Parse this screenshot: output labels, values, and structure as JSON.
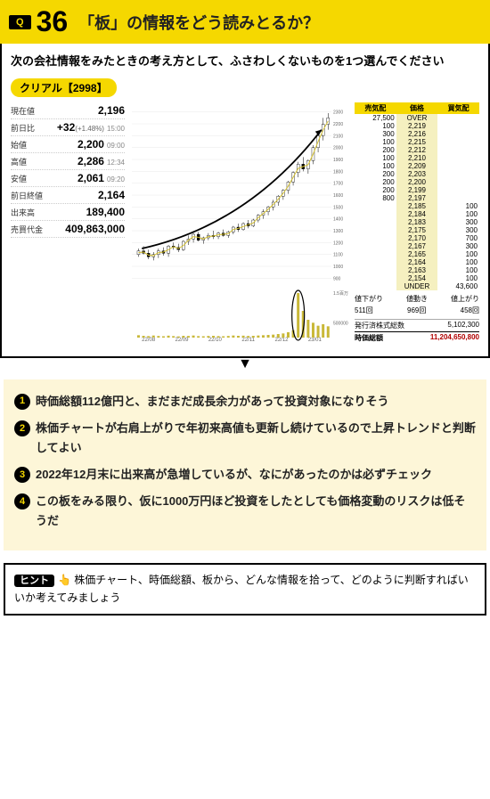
{
  "header": {
    "q_label": "Q",
    "q_number": "36",
    "title": "「板」の情報をどう読みとるか？"
  },
  "prompt": "次の会社情報をみたときの考え方として、ふさわしくないものを1つ選んでください",
  "ticker": "クリアル【2998】",
  "stats": [
    {
      "label": "現在値",
      "value": "2,196",
      "time": ""
    },
    {
      "label": "前日比",
      "value": "+32",
      "sub": "(+1.48%)",
      "time": "15:00"
    },
    {
      "label": "始値",
      "value": "2,200",
      "time": "09:00"
    },
    {
      "label": "高値",
      "value": "2,286",
      "time": "12:34"
    },
    {
      "label": "安値",
      "value": "2,061",
      "time": "09:20"
    },
    {
      "label": "前日終値",
      "value": "2,164",
      "time": ""
    },
    {
      "label": "出来高",
      "value": "189,400",
      "time": ""
    },
    {
      "label": "売買代金",
      "value": "409,863,000",
      "time": ""
    }
  ],
  "chart": {
    "type": "candlestick",
    "x_labels": [
      "22/08",
      "22/09",
      "22/10",
      "22/11",
      "22/12",
      "23/01"
    ],
    "y_ticks": [
      900,
      1000,
      1100,
      1200,
      1300,
      1400,
      1500,
      1600,
      1700,
      1800,
      1900,
      2000,
      2100,
      2200,
      2300
    ],
    "ylim": [
      850,
      2350
    ],
    "xlim": [
      0,
      6
    ],
    "trend_line": [
      [
        0.3,
        1150
      ],
      [
        3.5,
        1350
      ],
      [
        5.7,
        2150
      ]
    ],
    "arrow": true,
    "candles": [
      [
        0.2,
        1100,
        1150,
        1080,
        1130
      ],
      [
        0.35,
        1130,
        1170,
        1100,
        1110
      ],
      [
        0.5,
        1110,
        1140,
        1060,
        1080
      ],
      [
        0.65,
        1080,
        1120,
        1050,
        1100
      ],
      [
        0.8,
        1100,
        1150,
        1070,
        1130
      ],
      [
        0.95,
        1130,
        1160,
        1090,
        1110
      ],
      [
        1.1,
        1110,
        1180,
        1080,
        1170
      ],
      [
        1.25,
        1170,
        1200,
        1140,
        1160
      ],
      [
        1.4,
        1160,
        1190,
        1120,
        1140
      ],
      [
        1.55,
        1140,
        1220,
        1130,
        1210
      ],
      [
        1.7,
        1210,
        1260,
        1180,
        1230
      ],
      [
        1.85,
        1230,
        1280,
        1200,
        1270
      ],
      [
        2.0,
        1270,
        1290,
        1210,
        1220
      ],
      [
        2.15,
        1220,
        1250,
        1190,
        1240
      ],
      [
        2.3,
        1240,
        1280,
        1220,
        1260
      ],
      [
        2.45,
        1260,
        1300,
        1230,
        1250
      ],
      [
        2.6,
        1250,
        1290,
        1230,
        1280
      ],
      [
        2.75,
        1280,
        1310,
        1250,
        1260
      ],
      [
        2.9,
        1260,
        1300,
        1240,
        1290
      ],
      [
        3.05,
        1290,
        1340,
        1270,
        1330
      ],
      [
        3.2,
        1330,
        1360,
        1290,
        1310
      ],
      [
        3.35,
        1310,
        1370,
        1300,
        1360
      ],
      [
        3.5,
        1360,
        1390,
        1320,
        1340
      ],
      [
        3.65,
        1340,
        1400,
        1330,
        1390
      ],
      [
        3.8,
        1390,
        1440,
        1370,
        1430
      ],
      [
        3.95,
        1430,
        1480,
        1400,
        1460
      ],
      [
        4.1,
        1460,
        1510,
        1430,
        1500
      ],
      [
        4.25,
        1500,
        1560,
        1470,
        1540
      ],
      [
        4.4,
        1540,
        1600,
        1510,
        1590
      ],
      [
        4.55,
        1590,
        1650,
        1560,
        1640
      ],
      [
        4.7,
        1640,
        1720,
        1610,
        1710
      ],
      [
        4.85,
        1710,
        1800,
        1680,
        1790
      ],
      [
        5.0,
        1790,
        1880,
        1750,
        1860
      ],
      [
        5.15,
        1860,
        1920,
        1800,
        1820
      ],
      [
        5.3,
        1820,
        1900,
        1780,
        1890
      ],
      [
        5.45,
        1890,
        2020,
        1860,
        2000
      ],
      [
        5.6,
        2000,
        2120,
        1960,
        2100
      ],
      [
        5.75,
        2100,
        2250,
        2060,
        2196
      ],
      [
        5.9,
        2196,
        2290,
        2150,
        2250
      ]
    ],
    "volume_bars": [
      [
        0.2,
        80000
      ],
      [
        0.35,
        60000
      ],
      [
        0.5,
        50000
      ],
      [
        0.65,
        70000
      ],
      [
        0.8,
        55000
      ],
      [
        0.95,
        45000
      ],
      [
        1.1,
        65000
      ],
      [
        1.25,
        50000
      ],
      [
        1.4,
        40000
      ],
      [
        1.55,
        60000
      ],
      [
        1.7,
        55000
      ],
      [
        1.85,
        70000
      ],
      [
        2.0,
        50000
      ],
      [
        2.15,
        45000
      ],
      [
        2.3,
        55000
      ],
      [
        2.45,
        60000
      ],
      [
        2.6,
        50000
      ],
      [
        2.75,
        45000
      ],
      [
        2.9,
        55000
      ],
      [
        3.05,
        70000
      ],
      [
        3.2,
        60000
      ],
      [
        3.35,
        65000
      ],
      [
        3.5,
        55000
      ],
      [
        3.65,
        60000
      ],
      [
        3.8,
        70000
      ],
      [
        3.95,
        80000
      ],
      [
        4.1,
        90000
      ],
      [
        4.25,
        100000
      ],
      [
        4.4,
        120000
      ],
      [
        4.55,
        140000
      ],
      [
        4.7,
        180000
      ],
      [
        4.85,
        250000
      ],
      [
        5.0,
        1500000
      ],
      [
        5.15,
        900000
      ],
      [
        5.3,
        600000
      ],
      [
        5.45,
        500000
      ],
      [
        5.6,
        400000
      ],
      [
        5.75,
        450000
      ],
      [
        5.9,
        380000
      ]
    ],
    "volume_ylim": [
      0,
      1500000
    ],
    "volume_ticks": [
      "500000",
      "1.5百万"
    ],
    "candle_up_color": "#ffffff",
    "candle_down_color": "#000000",
    "candle_border": "#000000",
    "volume_color": "#c9b838",
    "grid_color": "#e8e8e8",
    "arrow_color": "#000000",
    "ma_color": "#d4c030",
    "circle_highlight": {
      "x": 5.0,
      "color": "#000000"
    }
  },
  "order_book": {
    "headers": [
      "売気配",
      "価格",
      "買気配"
    ],
    "sell": [
      [
        "27,500",
        "OVER"
      ],
      [
        "100",
        "2,219"
      ],
      [
        "300",
        "2,216"
      ],
      [
        "100",
        "2,215"
      ],
      [
        "200",
        "2,212"
      ],
      [
        "100",
        "2,210"
      ],
      [
        "100",
        "2,209"
      ],
      [
        "200",
        "2,203"
      ],
      [
        "200",
        "2,200"
      ],
      [
        "200",
        "2,199"
      ],
      [
        "800",
        "2,197"
      ]
    ],
    "buy": [
      [
        "2,185",
        "100"
      ],
      [
        "2,184",
        "100"
      ],
      [
        "2,183",
        "300"
      ],
      [
        "2,175",
        "300"
      ],
      [
        "2,170",
        "700"
      ],
      [
        "2,167",
        "300"
      ],
      [
        "2,165",
        "100"
      ],
      [
        "2,164",
        "100"
      ],
      [
        "2,163",
        "100"
      ],
      [
        "2,154",
        "100"
      ],
      [
        "UNDER",
        "43,600"
      ]
    ],
    "footer": {
      "labels": [
        "値下がり",
        "値動き",
        "値上がり"
      ],
      "values": [
        "511回",
        "969回",
        "458回"
      ],
      "shares_label": "発行済株式総数",
      "shares_value": "5,102,300",
      "mcap_label": "時価総額",
      "mcap_value": "11,204,650,800"
    }
  },
  "options": [
    "時価総額112億円と、まだまだ成長余力があって投資対象になりそう",
    "株価チャートが右肩上がりで年初来高値も更新し続けているので上昇トレンドと判断してよい",
    "2022年12月末に出来高が急増しているが、なにがあったのかは必ずチェック",
    "この板をみる限り、仮に1000万円ほど投資をしたとしても価格変動のリスクは低そうだ"
  ],
  "hint": {
    "badge": "ヒント",
    "icon": "👆",
    "text": "株価チャート、時価総額、板から、どんな情報を拾って、どのように判断すればいいか考えてみましょう"
  }
}
